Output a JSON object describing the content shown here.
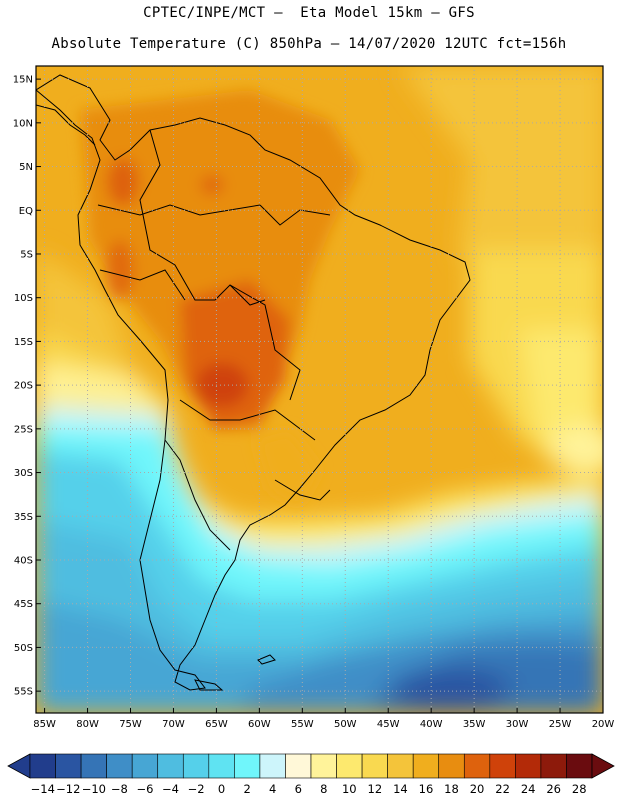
{
  "header": {
    "line1": "CPTEC/INPE/MCT –  Eta Model 15km – GFS",
    "line2": "Absolute Temperature (C) 850hPa – 14/07/2020 12UTC fct=156h"
  },
  "map": {
    "lat_ticks": [
      "15N",
      "10N",
      "5N",
      "EQ",
      "5S",
      "10S",
      "15S",
      "20S",
      "25S",
      "30S",
      "35S",
      "40S",
      "45S",
      "50S",
      "55S"
    ],
    "lon_ticks": [
      "85W",
      "80W",
      "75W",
      "70W",
      "65W",
      "60W",
      "55W",
      "50W",
      "45W",
      "40W",
      "35W",
      "30W",
      "25W",
      "20W"
    ],
    "lat_range": [
      16.5,
      -57.5
    ],
    "lon_range": [
      -86,
      -20
    ]
  },
  "colorbar": {
    "labels": [
      "-14",
      "-12",
      "-10",
      "-8",
      "-6",
      "-4",
      "-2",
      "0",
      "2",
      "4",
      "6",
      "8",
      "10",
      "12",
      "14",
      "16",
      "18",
      "20",
      "22",
      "24",
      "26",
      "28"
    ],
    "colors": [
      "#213d8c",
      "#2a55a2",
      "#3574b6",
      "#3f8ec7",
      "#47a6d4",
      "#4fbde0",
      "#55d0ea",
      "#5fe3f2",
      "#70f6fb",
      "#cdf5fb",
      "#fff8d8",
      "#fff39a",
      "#fde96e",
      "#f9d950",
      "#f4c43a",
      "#f0ae1e",
      "#e88d10",
      "#de620d",
      "#cf420a",
      "#b32a08",
      "#8d1a0b",
      "#6a0c0f"
    ]
  },
  "colors": {
    "background": "#ffffff",
    "frame": "#000000",
    "grid": "#aaaaaa"
  }
}
